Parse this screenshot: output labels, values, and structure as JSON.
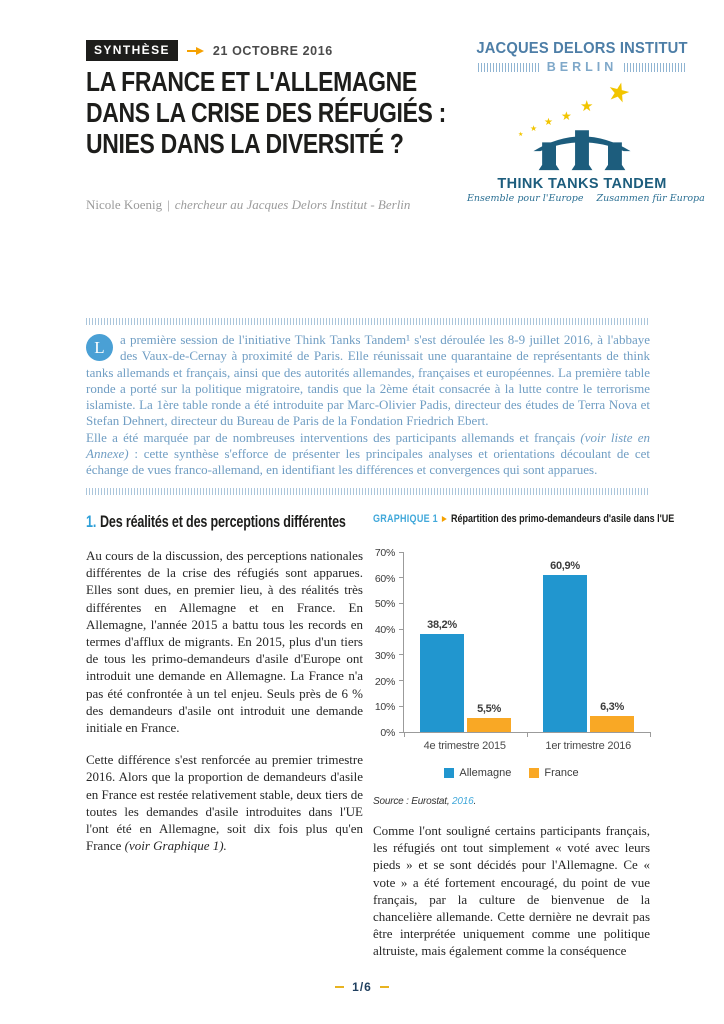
{
  "header": {
    "badge": "SYNTHÈSE",
    "date": "21 OCTOBRE 2016",
    "title_lines": [
      "LA FRANCE ET L'ALLEMAGNE",
      "DANS LA CRISE DES RÉFUGIÉS :",
      "UNIES DANS LA DIVERSITÉ ?"
    ],
    "author_name": "Nicole Koenig",
    "author_separator": "|",
    "author_role": "chercheur au Jacques Delors Institut - Berlin"
  },
  "logo": {
    "institute_name": "JACQUES DELORS INSTITUT",
    "institute_city": "BERLIN",
    "tandem_name": "THINK TANKS TANDEM",
    "tagline_fr": "Ensemble pour l'Europe",
    "tagline_de": "Zusammen für Europa"
  },
  "intro": {
    "dropcap": "L",
    "p1": "a première session de l'initiative Think Tanks Tandem¹ s'est déroulée les 8-9 juillet 2016, à l'abbaye des Vaux-de-Cernay à proximité de Paris. Elle réunissait une quarantaine de représentants de think tanks allemands et français, ainsi que des autorités allemandes, françaises et européennes. La première table ronde a porté sur la politique migratoire, tandis que la 2ème était consacrée à la lutte contre le terrorisme islamiste. La 1ère table ronde a été introduite par Marc-Olivier Padis, directeur des études de Terra Nova et Stefan Dehnert, directeur du Bureau de Paris de la Fondation Friedrich Ebert.",
    "p2_part1": "Elle a été marquée par de nombreuses interventions des participants allemands et français ",
    "p2_em": "(voir liste en Annexe)",
    "p2_part2": " : cette synthèse s'efforce de présenter les principales analyses et orientations découlant de cet échange de vues franco-allemand, en identifiant les différences et convergences qui sont apparues."
  },
  "section1": {
    "number": "1.",
    "title": "Des réalités et des perceptions différentes",
    "para1": "Au cours de la discussion, des perceptions nationales différentes de la crise des réfugiés sont apparues. Elles sont dues, en premier lieu, à des réalités très différentes en Allemagne et en France. En Allemagne, l'année 2015 a battu tous les records en termes d'afflux de migrants. En 2015, plus d'un tiers de tous les primo-demandeurs d'asile d'Europe ont introduit une demande en Allemagne. La France n'a pas été confrontée à un tel enjeu. Seuls près de 6 % des demandeurs d'asile ont introduit une demande initiale en France.",
    "para2_text": "Cette différence s'est renforcée au premier trimestre 2016. Alors que la proportion de demandeurs d'asile en France est restée relativement stable, deux tiers de toutes les demandes d'asile introduites dans l'UE l'ont été en Allemagne, soit dix fois plus qu'en France ",
    "para2_em": "(voir Graphique 1).",
    "para3": "Comme l'ont souligné certains participants français, les réfugiés ont tout simplement « voté avec leurs pieds » et se sont décidés pour l'Allemagne. Ce « vote » a été fortement encouragé, du point de vue français, par la culture de bienvenue de la chancelière allemande. Cette dernière ne devrait pas être interprétée uniquement comme une politique altruiste, mais également comme la conséquence"
  },
  "chart": {
    "label": "GRAPHIQUE 1",
    "title": "Répartition des primo-demandeurs d'asile dans l'UE",
    "source_prefix": "Source : Eurostat, ",
    "source_link": "2016",
    "source_suffix": "."
  },
  "chart_data": {
    "type": "bar",
    "title": "Répartition des primo-demandeurs d'asile dans l'UE",
    "categories": [
      "4e trimestre 2015",
      "1er trimestre 2016"
    ],
    "series": [
      {
        "name": "Allemagne",
        "color": "#2196cf",
        "values": [
          38.2,
          60.9
        ],
        "value_labels": [
          "38,2%",
          "60,9%"
        ]
      },
      {
        "name": "France",
        "color": "#f9a825",
        "values": [
          5.5,
          6.3
        ],
        "value_labels": [
          "5,5%",
          "6,3%"
        ]
      }
    ],
    "yticks": [
      "0%",
      "10%",
      "20%",
      "30%",
      "40%",
      "50%",
      "60%",
      "70%"
    ],
    "ylim": [
      0,
      70
    ],
    "grid": false,
    "legend_position": "bottom",
    "source": "Eurostat, 2016"
  },
  "colors": {
    "accent_orange": "#f5a100",
    "accent_blue": "#2d9fd8",
    "institute_blue": "#4d7ea7",
    "tandem_navy": "#1d5d7d",
    "intro_blue": "#6f9dc3",
    "star_gold": "#f2c500",
    "footer_navy": "#1f3f5f"
  },
  "footer": {
    "page": "1/6"
  }
}
